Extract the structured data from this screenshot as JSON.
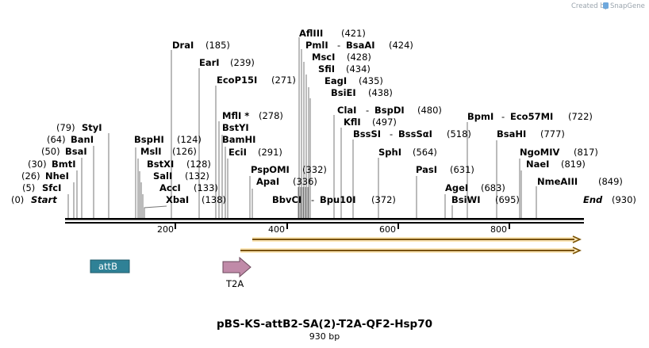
{
  "branding": {
    "created_by": "Created by",
    "app": "SnapGene"
  },
  "map": {
    "title": "pBS-KS-attB2-SA(2)-T2A-QF2-Hsp70",
    "length_label": "930 bp",
    "length": 930,
    "start_label": "Start",
    "start_pos": "(0)",
    "end_label": "End",
    "end_pos": "(930)",
    "ticks": [
      "200",
      "400",
      "600",
      "800"
    ],
    "tick_values": [
      200,
      400,
      600,
      800
    ]
  },
  "sites": [
    {
      "name": "SfcI",
      "pos": "(5)"
    },
    {
      "name": "NheI",
      "pos": "(26)"
    },
    {
      "name": "BmtI",
      "pos": "(30)"
    },
    {
      "name": "BsaI",
      "pos": "(50)"
    },
    {
      "name": "BanI",
      "pos": "(64)"
    },
    {
      "name": "StyI",
      "pos": "(79)"
    },
    {
      "name": "XbaI",
      "pos": "(138)"
    },
    {
      "name": "AccI",
      "pos": "(133)"
    },
    {
      "name": "SalI",
      "pos": "(132)"
    },
    {
      "name": "BstXI",
      "pos": "(128)"
    },
    {
      "name": "MslI",
      "pos": "(126)"
    },
    {
      "name": "BspHI",
      "pos": "(124)"
    },
    {
      "name": "DraI",
      "pos": "(185)"
    },
    {
      "name": "EarI",
      "pos": "(239)"
    },
    {
      "name": "EcoP15I",
      "pos": "(271)"
    },
    {
      "name": "MflI *",
      "pos": "(278)"
    },
    {
      "name": "BstYI",
      "pos": ""
    },
    {
      "name": "BamHI",
      "pos": ""
    },
    {
      "name": "EciI",
      "pos": "(291)"
    },
    {
      "name": "PspOMI",
      "pos": "(332)"
    },
    {
      "name": "ApaI",
      "pos": "(336)"
    },
    {
      "name": "AflIII",
      "pos": "(421)"
    },
    {
      "name": "PmlI",
      "pos": ""
    },
    {
      "name": "BsaAI",
      "pos": "(424)"
    },
    {
      "name": "MscI",
      "pos": "(428)"
    },
    {
      "name": "SfiI",
      "pos": "(434)"
    },
    {
      "name": "EagI",
      "pos": "(435)"
    },
    {
      "name": "BsiEI",
      "pos": "(438)"
    },
    {
      "name": "ClaI",
      "pos": ""
    },
    {
      "name": "BspDI",
      "pos": "(480)"
    },
    {
      "name": "KflI",
      "pos": "(497)"
    },
    {
      "name": "BssSI",
      "pos": ""
    },
    {
      "name": "BssSαI",
      "pos": "(518)"
    },
    {
      "name": "BbvCI",
      "pos": ""
    },
    {
      "name": "Bpu10I",
      "pos": "(372)"
    },
    {
      "name": "SphI",
      "pos": "(564)"
    },
    {
      "name": "PasI",
      "pos": "(631)"
    },
    {
      "name": "AgeI",
      "pos": "(683)"
    },
    {
      "name": "BsiWI",
      "pos": "(695)"
    },
    {
      "name": "BpmI",
      "pos": ""
    },
    {
      "name": "Eco57MI",
      "pos": "(722)"
    },
    {
      "name": "BsaHI",
      "pos": "(777)"
    },
    {
      "name": "NgoMIV",
      "pos": "(817)"
    },
    {
      "name": "NaeI",
      "pos": "(819)"
    },
    {
      "name": "NmeAIII",
      "pos": "(849)"
    }
  ],
  "features": [
    {
      "name": "attB",
      "color": "#2f8196"
    },
    {
      "name": "T2A",
      "color": "#c08aa8"
    }
  ],
  "orf_color": "#f2b640"
}
